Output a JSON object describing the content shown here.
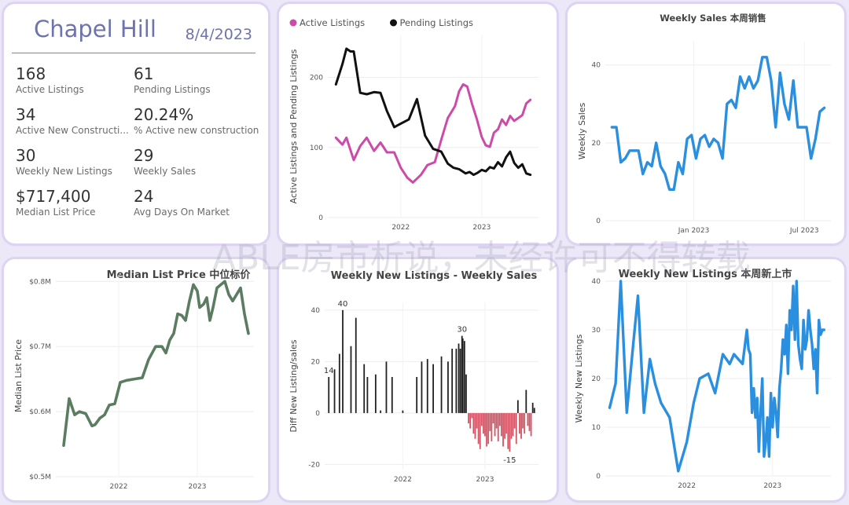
{
  "kpi_panel": {
    "city": "Chapel Hill",
    "date": "8/4/2023",
    "items": [
      {
        "value": "168",
        "label": "Active Listings"
      },
      {
        "value": "61",
        "label": "Pending Listings"
      },
      {
        "value": "34",
        "label": "Active New Constructi..."
      },
      {
        "value": "20.24%",
        "label": "% Active new constructions"
      },
      {
        "value": "30",
        "label": "Weekly New Listings"
      },
      {
        "value": "29",
        "label": "Weekly Sales"
      },
      {
        "value": "$717,400",
        "label": "Median List Price"
      },
      {
        "value": "24",
        "label": "Avg Days On Market"
      }
    ]
  },
  "watermark": "ABLE房市析说，未经许可不得转载",
  "colors": {
    "active": "#cc4aa8",
    "pending": "#111111",
    "blue": "#2b8fe0",
    "green": "#5b7c60",
    "bar_pos": "#222222",
    "bar_neg": "#d05565"
  },
  "chart_data": [
    {
      "id": "active_pending",
      "type": "line",
      "title": "",
      "legend": [
        "Active Listings",
        "Pending Listings"
      ],
      "legend_position": "top-left",
      "ylabel": "Active Listings and Pending Listings",
      "ylim": [
        0,
        260
      ],
      "yticks": [
        0,
        100,
        200
      ],
      "xticks": [
        {
          "x": 2022,
          "label": "2022"
        },
        {
          "x": 2023,
          "label": "2023"
        }
      ],
      "xlim": [
        2021.1,
        2023.7
      ],
      "series": [
        {
          "name": "Active Listings",
          "color": "#cc4aa8",
          "x": [
            2021.2,
            2021.28,
            2021.33,
            2021.42,
            2021.5,
            2021.58,
            2021.67,
            2021.75,
            2021.83,
            2021.92,
            2022.0,
            2022.08,
            2022.15,
            2022.25,
            2022.33,
            2022.42,
            2022.5,
            2022.58,
            2022.67,
            2022.72,
            2022.77,
            2022.82,
            2022.88,
            2022.94,
            2023.0,
            2023.05,
            2023.1,
            2023.15,
            2023.2,
            2023.25,
            2023.3,
            2023.35,
            2023.4,
            2023.45,
            2023.5,
            2023.55,
            2023.6
          ],
          "y": [
            114,
            104,
            114,
            82,
            102,
            114,
            95,
            107,
            93,
            93,
            71,
            57,
            50,
            61,
            75,
            79,
            111,
            142,
            159,
            180,
            190,
            187,
            162,
            140,
            115,
            103,
            101,
            121,
            126,
            140,
            132,
            145,
            138,
            142,
            146,
            163,
            168
          ]
        },
        {
          "name": "Pending Listings",
          "color": "#111111",
          "x": [
            2021.2,
            2021.28,
            2021.33,
            2021.38,
            2021.42,
            2021.5,
            2021.58,
            2021.67,
            2021.75,
            2021.83,
            2021.92,
            2022.0,
            2022.1,
            2022.2,
            2022.3,
            2022.4,
            2022.5,
            2022.58,
            2022.65,
            2022.72,
            2022.8,
            2022.85,
            2022.9,
            2022.95,
            2023.0,
            2023.05,
            2023.1,
            2023.15,
            2023.2,
            2023.25,
            2023.3,
            2023.35,
            2023.4,
            2023.45,
            2023.5,
            2023.55,
            2023.6
          ],
          "y": [
            190,
            219,
            241,
            237,
            237,
            178,
            176,
            179,
            178,
            152,
            129,
            134,
            140,
            169,
            117,
            98,
            94,
            77,
            71,
            69,
            63,
            65,
            61,
            64,
            68,
            66,
            72,
            70,
            79,
            73,
            86,
            94,
            78,
            71,
            76,
            63,
            61
          ]
        }
      ]
    },
    {
      "id": "weekly_sales",
      "type": "line",
      "title": "Weekly Sales 本周销售",
      "ylabel": "Weekly Sales",
      "ylim": [
        0,
        46
      ],
      "yticks": [
        0,
        20,
        40
      ],
      "xticks": [
        {
          "x": 2023.0,
          "label": "Jan 2023"
        },
        {
          "x": 2023.5,
          "label": "Jul 2023"
        }
      ],
      "xlim": [
        2022.6,
        2023.62
      ],
      "series": [
        {
          "name": "Weekly Sales",
          "color": "#2b8fe0",
          "x": [
            2022.63,
            2022.65,
            2022.67,
            2022.69,
            2022.71,
            2022.73,
            2022.75,
            2022.77,
            2022.79,
            2022.81,
            2022.83,
            2022.85,
            2022.87,
            2022.89,
            2022.91,
            2022.93,
            2022.95,
            2022.97,
            2022.99,
            2023.01,
            2023.03,
            2023.05,
            2023.07,
            2023.09,
            2023.11,
            2023.13,
            2023.15,
            2023.17,
            2023.19,
            2023.21,
            2023.23,
            2023.25,
            2023.27,
            2023.29,
            2023.31,
            2023.33,
            2023.35,
            2023.37,
            2023.39,
            2023.41,
            2023.43,
            2023.45,
            2023.47,
            2023.49,
            2023.51,
            2023.53,
            2023.55,
            2023.57,
            2023.59
          ],
          "y": [
            24,
            24,
            15,
            16,
            18,
            18,
            18,
            12,
            15,
            14,
            20,
            14,
            12,
            8,
            8,
            15,
            12,
            21,
            22,
            16,
            21,
            22,
            19,
            21,
            20,
            16,
            30,
            31,
            29,
            37,
            34,
            37,
            34,
            36,
            42,
            42,
            36,
            24,
            38,
            30,
            26,
            36,
            24,
            24,
            24,
            16,
            21,
            28,
            29
          ]
        }
      ]
    },
    {
      "id": "median_price",
      "type": "line",
      "title": "Median List Price  中位标价",
      "ylabel": "Median List Price",
      "ylim": [
        0.5,
        0.81
      ],
      "yticks": [
        {
          "y": 0.5,
          "label": "$0.5M"
        },
        {
          "y": 0.6,
          "label": "$0.6M"
        },
        {
          "y": 0.7,
          "label": "$0.7M"
        },
        {
          "y": 0.8,
          "label": "$0.8M"
        }
      ],
      "xticks": [
        {
          "x": 2022,
          "label": "2022"
        },
        {
          "x": 2023,
          "label": "2023"
        }
      ],
      "xlim": [
        2021.2,
        2023.72
      ],
      "series": [
        {
          "name": "Median List Price",
          "color": "#5b7c60",
          "x": [
            2021.3,
            2021.37,
            2021.44,
            2021.5,
            2021.58,
            2021.66,
            2021.7,
            2021.76,
            2021.82,
            2021.88,
            2021.95,
            2022.02,
            2022.1,
            2022.2,
            2022.3,
            2022.38,
            2022.47,
            2022.55,
            2022.6,
            2022.65,
            2022.7,
            2022.75,
            2022.8,
            2022.85,
            2022.9,
            2022.95,
            2023.0,
            2023.03,
            2023.08,
            2023.12,
            2023.16,
            2023.2,
            2023.25,
            2023.3,
            2023.35,
            2023.4,
            2023.45,
            2023.5,
            2023.55,
            2023.6,
            2023.65
          ],
          "y": [
            0.548,
            0.62,
            0.595,
            0.6,
            0.597,
            0.578,
            0.58,
            0.59,
            0.595,
            0.61,
            0.612,
            0.645,
            0.648,
            0.65,
            0.652,
            0.68,
            0.7,
            0.7,
            0.69,
            0.71,
            0.72,
            0.75,
            0.748,
            0.74,
            0.77,
            0.795,
            0.785,
            0.76,
            0.765,
            0.775,
            0.74,
            0.76,
            0.79,
            0.795,
            0.8,
            0.78,
            0.77,
            0.78,
            0.79,
            0.75,
            0.72
          ]
        }
      ]
    },
    {
      "id": "diff_listings_sales",
      "type": "bar",
      "title": "Weekly New Listings - Weekly Sales",
      "ylabel": "Diff New Listing/sales",
      "ylim": [
        -22,
        43
      ],
      "yticks": [
        -20,
        0,
        20,
        40
      ],
      "xticks": [
        {
          "x": 2022,
          "label": "2022"
        },
        {
          "x": 2023,
          "label": "2023"
        }
      ],
      "xlim": [
        2021.05,
        2023.65
      ],
      "annotations": [
        {
          "x": 2021.1,
          "y": 14,
          "label": "14"
        },
        {
          "x": 2021.27,
          "y": 40,
          "label": "40"
        },
        {
          "x": 2022.72,
          "y": 30,
          "label": "30"
        },
        {
          "x": 2023.3,
          "y": -15,
          "label": "-15"
        }
      ],
      "bars": {
        "x": [
          2021.1,
          2021.17,
          2021.23,
          2021.27,
          2021.37,
          2021.43,
          2021.53,
          2021.57,
          2021.67,
          2021.73,
          2021.8,
          2021.87,
          2022.0,
          2022.17,
          2022.23,
          2022.3,
          2022.37,
          2022.47,
          2022.55,
          2022.6,
          2022.65,
          2022.68,
          2022.7,
          2022.72,
          2022.73,
          2022.75,
          2022.77,
          2022.8,
          2022.82,
          2022.84,
          2022.86,
          2022.88,
          2022.9,
          2022.92,
          2022.94,
          2022.96,
          2022.98,
          2023.0,
          2023.02,
          2023.04,
          2023.06,
          2023.08,
          2023.1,
          2023.12,
          2023.14,
          2023.16,
          2023.18,
          2023.2,
          2023.22,
          2023.24,
          2023.26,
          2023.28,
          2023.3,
          2023.32,
          2023.34,
          2023.36,
          2023.38,
          2023.4,
          2023.42,
          2023.44,
          2023.46,
          2023.48,
          2023.5,
          2023.52,
          2023.54,
          2023.56,
          2023.58,
          2023.6
        ],
        "y": [
          14,
          17,
          23,
          40,
          26,
          37,
          19,
          14,
          15,
          1,
          20,
          14,
          1,
          14,
          20,
          21,
          19,
          22,
          20,
          25,
          25,
          27,
          25,
          30,
          29,
          28,
          15,
          -4,
          -6,
          -2,
          -8,
          -10,
          -6,
          -12,
          -14,
          -5,
          -8,
          -9,
          -13,
          -12,
          -7,
          -11,
          -4,
          -9,
          -6,
          -11,
          -5,
          -9,
          -13,
          -10,
          -8,
          -14,
          -15,
          -10,
          -9,
          -6,
          -12,
          5,
          -8,
          -10,
          -6,
          -8,
          9,
          -5,
          -7,
          -9,
          4,
          2
        ]
      }
    },
    {
      "id": "weekly_new_listings",
      "type": "line",
      "title": "Weekly New Listings  本周新上市",
      "ylabel": "Weekly New Listings",
      "ylim": [
        0,
        40
      ],
      "yticks": [
        0,
        10,
        20,
        30,
        40
      ],
      "xticks": [
        {
          "x": 2022,
          "label": "2022"
        },
        {
          "x": 2023,
          "label": "2023"
        }
      ],
      "xlim": [
        2021.05,
        2023.68
      ],
      "series": [
        {
          "name": "Weekly New Listings",
          "color": "#2b8fe0",
          "x": [
            2021.1,
            2021.17,
            2021.23,
            2021.3,
            2021.37,
            2021.43,
            2021.5,
            2021.57,
            2021.63,
            2021.7,
            2021.8,
            2021.9,
            2022.0,
            2022.08,
            2022.15,
            2022.25,
            2022.33,
            2022.42,
            2022.5,
            2022.55,
            2022.6,
            2022.65,
            2022.7,
            2022.72,
            2022.74,
            2022.76,
            2022.78,
            2022.8,
            2022.82,
            2022.84,
            2022.86,
            2022.88,
            2022.9,
            2022.92,
            2022.94,
            2022.96,
            2022.98,
            2023.0,
            2023.02,
            2023.04,
            2023.06,
            2023.08,
            2023.1,
            2023.12,
            2023.14,
            2023.16,
            2023.18,
            2023.2,
            2023.22,
            2023.24,
            2023.26,
            2023.28,
            2023.3,
            2023.32,
            2023.34,
            2023.36,
            2023.38,
            2023.4,
            2023.42,
            2023.44,
            2023.46,
            2023.48,
            2023.5,
            2023.52,
            2023.54,
            2023.56,
            2023.58,
            2023.6
          ],
          "y": [
            14,
            19,
            40,
            13,
            26,
            37,
            13,
            24,
            19,
            15,
            12,
            1,
            7,
            15,
            20,
            21,
            17,
            25,
            23,
            25,
            24,
            23,
            30,
            26,
            25,
            13,
            18,
            12,
            16,
            5,
            13,
            20,
            4,
            7,
            12,
            4,
            17,
            10,
            16,
            13,
            8,
            18,
            22,
            28,
            25,
            31,
            21,
            34,
            30,
            39,
            28,
            40,
            27,
            24,
            22,
            32,
            26,
            28,
            34,
            30,
            27,
            22,
            26,
            17,
            32,
            29,
            30,
            30
          ]
        }
      ]
    }
  ]
}
